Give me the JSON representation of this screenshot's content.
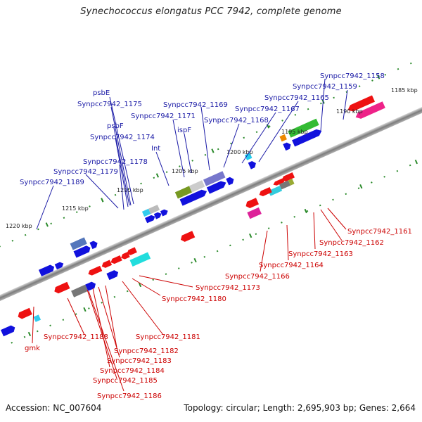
{
  "title": "Synechococcus elongatus PCC 7942, complete genome",
  "footer": {
    "accession": "Accession: NC_007604",
    "info": "Topology: circular; Length: 2,695,903 bp; Genes: 2,664"
  },
  "kbp_labels": [
    "1185 kbp",
    "1190 kbp",
    "1195 kbp",
    "1200 kbp",
    "1205 kbp",
    "1210 kbp",
    "1215 kbp",
    "1220 kbp"
  ],
  "top_gene_labels": [
    "Synpcc7942_1158",
    "Synpcc7942_1159",
    "Synpcc7942_1165",
    "Synpcc7942_1167",
    "Synpcc7942_1168",
    "Synpcc7942_1169",
    "psbE",
    "Synpcc7942_1175",
    "psbF",
    "Synpcc7942_1171",
    "ispF",
    "Synpcc7942_1174",
    "Int",
    "Synpcc7942_1178",
    "Synpcc7942_1179",
    "Synpcc7942_1189"
  ],
  "bottom_gene_labels": [
    "Synpcc7942_1161",
    "Synpcc7942_1162",
    "Synpcc7942_1163",
    "Synpcc7942_1164",
    "Synpcc7942_1166",
    "Synpcc7942_1173",
    "Synpcc7942_1180",
    "Synpcc7942_1181",
    "Synpcc7942_1188",
    "Synpcc7942_1182",
    "Synpcc7942_1183",
    "Synpcc7942_1184",
    "Synpcc7942_1185",
    "Synpcc7942_1186",
    "gmk"
  ],
  "colors": {
    "forward_cds": "#1111dd",
    "reverse_cds": "#ee1111",
    "top_label": "#1a1aa6",
    "bottom_label": "#cc0000",
    "backbone": "#8a8a8a",
    "tick_dots": "#2a8a2a"
  }
}
